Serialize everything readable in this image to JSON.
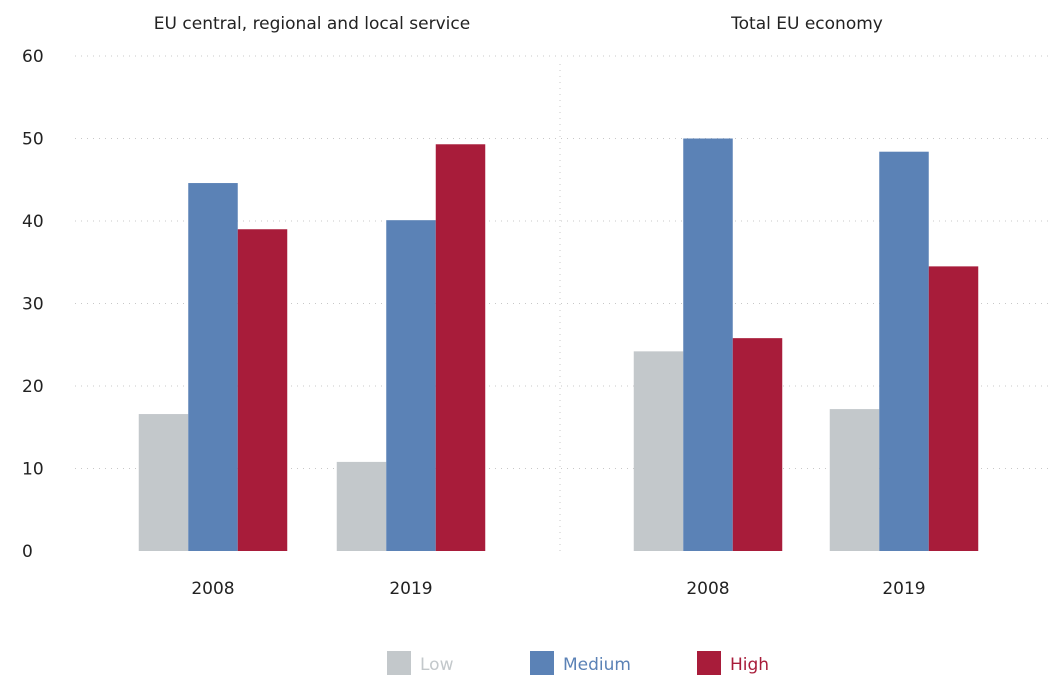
{
  "chart_data": {
    "type": "bar",
    "ylim": [
      0,
      60
    ],
    "yticks": [
      0,
      10,
      20,
      30,
      40,
      50,
      60
    ],
    "grid": true,
    "legend_position": "bottom",
    "colors": {
      "Low": "#c3c8cb",
      "Medium": "#5b82b6",
      "High": "#a81c3a"
    },
    "series_names": [
      "Low",
      "Medium",
      "High"
    ],
    "panels": [
      {
        "title": "EU central, regional and local service",
        "categories": [
          "2008",
          "2019"
        ],
        "series": [
          {
            "name": "Low",
            "values": [
              16.6,
              10.8
            ]
          },
          {
            "name": "Medium",
            "values": [
              44.6,
              40.1
            ]
          },
          {
            "name": "High",
            "values": [
              39.0,
              49.3
            ]
          }
        ]
      },
      {
        "title": "Total EU economy",
        "categories": [
          "2008",
          "2019"
        ],
        "series": [
          {
            "name": "Low",
            "values": [
              24.2,
              17.2
            ]
          },
          {
            "name": "Medium",
            "values": [
              50.0,
              48.4
            ]
          },
          {
            "name": "High",
            "values": [
              25.8,
              34.5
            ]
          }
        ]
      }
    ]
  }
}
